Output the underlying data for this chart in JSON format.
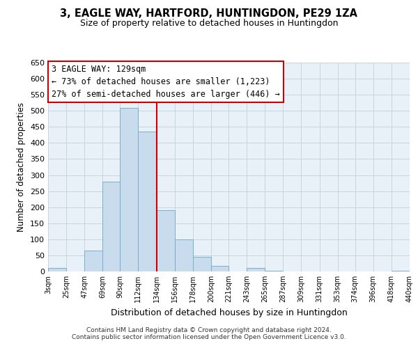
{
  "title": "3, EAGLE WAY, HARTFORD, HUNTINGDON, PE29 1ZA",
  "subtitle": "Size of property relative to detached houses in Huntingdon",
  "xlabel": "Distribution of detached houses by size in Huntingdon",
  "ylabel": "Number of detached properties",
  "bin_edges": [
    3,
    25,
    47,
    69,
    90,
    112,
    134,
    156,
    178,
    200,
    221,
    243,
    265,
    287,
    309,
    331,
    353,
    374,
    396,
    418,
    440
  ],
  "bar_heights": [
    10,
    0,
    65,
    280,
    510,
    435,
    190,
    100,
    45,
    18,
    0,
    10,
    2,
    0,
    0,
    0,
    0,
    0,
    0,
    2
  ],
  "bar_color": "#c8dced",
  "bar_edge_color": "#7aaec8",
  "vline_x": 134,
  "vline_color": "#cc0000",
  "ylim": [
    0,
    650
  ],
  "yticks": [
    0,
    50,
    100,
    150,
    200,
    250,
    300,
    350,
    400,
    450,
    500,
    550,
    600,
    650
  ],
  "annotation_title": "3 EAGLE WAY: 129sqm",
  "annotation_line1": "← 73% of detached houses are smaller (1,223)",
  "annotation_line2": "27% of semi-detached houses are larger (446) →",
  "annotation_box_color": "#ffffff",
  "annotation_box_edge_color": "#cc0000",
  "footer_line1": "Contains HM Land Registry data © Crown copyright and database right 2024.",
  "footer_line2": "Contains public sector information licensed under the Open Government Licence v3.0.",
  "background_color": "#ffffff",
  "plot_bg_color": "#e8f0f8",
  "grid_color": "#c8d4e0"
}
